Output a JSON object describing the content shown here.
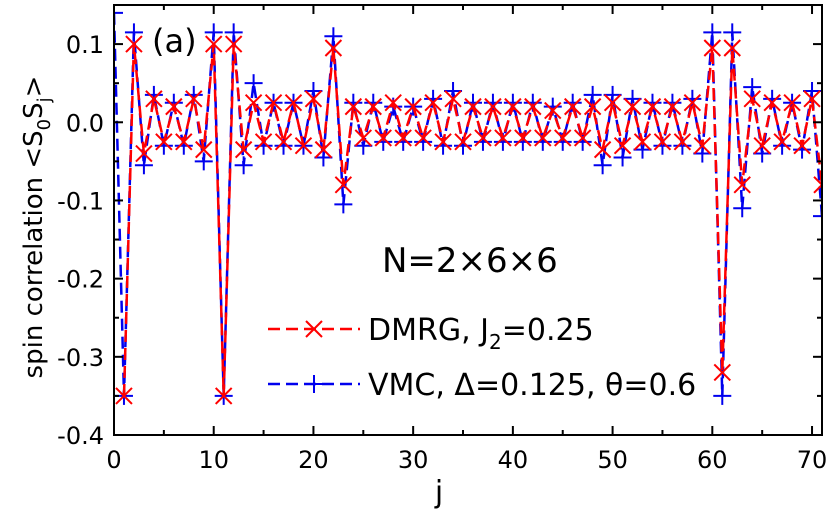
{
  "chart_data": {
    "type": "line",
    "panel_label": "(a)",
    "annotation": "N=2×6×6",
    "xlabel": "j",
    "ylabel_parts": {
      "pre": "spin correlation <S",
      "sub0": "0",
      "mid": "S",
      "subj": "j",
      "post": ">"
    },
    "xlim": [
      0,
      71
    ],
    "ylim": [
      -0.4,
      0.15
    ],
    "x_ticks": [
      0,
      10,
      20,
      30,
      40,
      50,
      60,
      70
    ],
    "x_tick_labels": [
      "0",
      "10",
      "20",
      "30",
      "40",
      "50",
      "60",
      "70"
    ],
    "y_ticks": [
      0.1,
      0.0,
      -0.1,
      -0.2,
      -0.3,
      -0.4
    ],
    "y_tick_labels": [
      "0.1",
      "0.0",
      "-0.1",
      "-0.2",
      "-0.3",
      "-0.4"
    ],
    "legend_position": "bottom-right",
    "series": [
      {
        "name": "DMRG, J_2=0.25",
        "legend": {
          "pre": "DMRG, J",
          "sub": "2",
          "post": "=0.25"
        },
        "color": "#ff0000",
        "marker": "x",
        "x": [
          1,
          2,
          3,
          4,
          5,
          6,
          7,
          8,
          9,
          10,
          11,
          12,
          13,
          14,
          15,
          16,
          17,
          18,
          19,
          20,
          21,
          22,
          23,
          24,
          25,
          26,
          27,
          28,
          29,
          30,
          31,
          32,
          33,
          34,
          35,
          36,
          37,
          38,
          39,
          40,
          41,
          42,
          43,
          44,
          45,
          46,
          47,
          48,
          49,
          50,
          51,
          52,
          53,
          54,
          55,
          56,
          57,
          58,
          59,
          60,
          61,
          62,
          63,
          64,
          65,
          66,
          67,
          68,
          69,
          70,
          71
        ],
        "y": [
          -0.35,
          0.1,
          -0.04,
          0.03,
          -0.025,
          0.02,
          -0.025,
          0.03,
          -0.035,
          0.1,
          -0.35,
          0.1,
          -0.035,
          0.025,
          -0.025,
          0.025,
          -0.025,
          0.025,
          -0.03,
          0.03,
          -0.035,
          0.095,
          -0.08,
          0.02,
          -0.02,
          0.02,
          -0.02,
          0.025,
          -0.02,
          0.02,
          -0.02,
          0.025,
          -0.025,
          0.03,
          -0.025,
          0.02,
          -0.02,
          0.02,
          -0.02,
          0.02,
          -0.02,
          0.02,
          -0.02,
          0.015,
          -0.02,
          0.02,
          -0.02,
          0.02,
          -0.035,
          0.025,
          -0.03,
          0.02,
          -0.025,
          0.02,
          -0.025,
          0.02,
          -0.025,
          0.025,
          -0.03,
          0.095,
          -0.32,
          0.095,
          -0.08,
          0.03,
          -0.03,
          0.025,
          -0.025,
          0.025,
          -0.03,
          0.03,
          -0.08
        ]
      },
      {
        "name": "VMC, Δ=0.125, θ=0.6",
        "legend": {
          "pre": "VMC, Δ=0.125, θ=0.6",
          "sub": "",
          "post": ""
        },
        "color": "#0000ee",
        "marker": "+",
        "x": [
          0,
          1,
          2,
          3,
          4,
          5,
          6,
          7,
          8,
          9,
          10,
          11,
          12,
          13,
          14,
          15,
          16,
          17,
          18,
          19,
          20,
          21,
          22,
          23,
          24,
          25,
          26,
          27,
          28,
          29,
          30,
          31,
          32,
          33,
          34,
          35,
          36,
          37,
          38,
          39,
          40,
          41,
          42,
          43,
          44,
          45,
          46,
          47,
          48,
          49,
          50,
          51,
          52,
          53,
          54,
          55,
          56,
          57,
          58,
          59,
          60,
          61,
          62,
          63,
          64,
          65,
          66,
          67,
          68,
          69,
          70,
          71
        ],
        "y": [
          0.14,
          -0.35,
          0.115,
          -0.055,
          0.035,
          -0.03,
          0.025,
          -0.03,
          0.035,
          -0.05,
          0.115,
          -0.35,
          0.115,
          -0.055,
          0.05,
          -0.03,
          0.025,
          -0.03,
          0.025,
          -0.03,
          0.04,
          -0.045,
          0.11,
          -0.105,
          0.025,
          -0.03,
          0.025,
          -0.025,
          0.02,
          -0.025,
          0.02,
          -0.025,
          0.03,
          -0.03,
          0.04,
          -0.03,
          0.025,
          -0.025,
          0.025,
          -0.025,
          0.025,
          -0.025,
          0.025,
          -0.025,
          0.02,
          -0.025,
          0.025,
          -0.025,
          0.035,
          -0.055,
          0.035,
          -0.045,
          0.03,
          -0.035,
          0.025,
          -0.03,
          0.025,
          -0.03,
          0.03,
          -0.04,
          0.115,
          -0.35,
          0.115,
          -0.11,
          0.045,
          -0.04,
          0.03,
          -0.03,
          0.025,
          -0.035,
          0.04,
          -0.12
        ]
      }
    ]
  }
}
